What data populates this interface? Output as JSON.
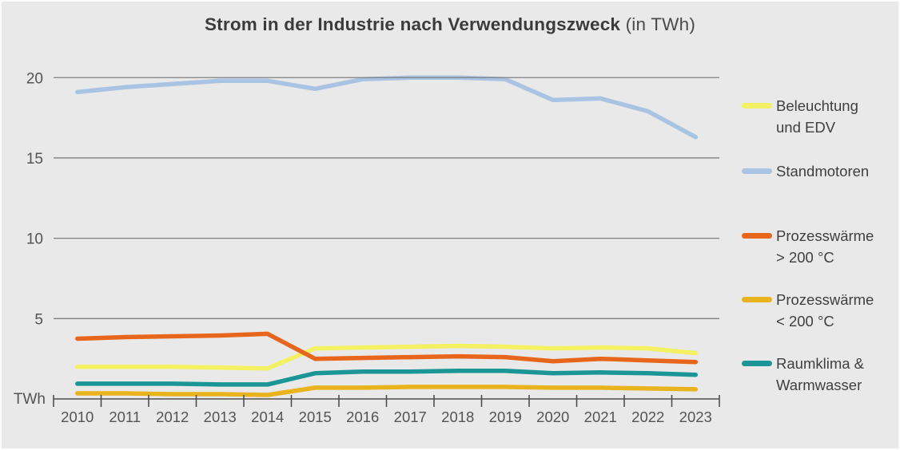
{
  "page": {
    "title_main": "Strom in der Industrie nach Verwendungszweck",
    "title_suffix": " (in TWh)"
  },
  "chart_data": {
    "type": "line",
    "title": "Strom in der Industrie nach Verwendungszweck (in TWh)",
    "xlabel": "",
    "ylabel": "TWh",
    "ylim": [
      0,
      21
    ],
    "yticks": [
      5,
      10,
      15,
      20
    ],
    "grid": true,
    "legend_position": "right",
    "background_color": "#e9e9e9",
    "gridline_color": "#7f7f7f",
    "axis_color": "#4f4f4f",
    "text_color": "#545454",
    "x": [
      2010,
      2011,
      2012,
      2013,
      2014,
      2015,
      2016,
      2017,
      2018,
      2019,
      2020,
      2021,
      2022,
      2023
    ],
    "series": [
      {
        "name": "Beleuchtung und EDV",
        "legend_lines": [
          "Beleuchtung",
          "und EDV"
        ],
        "color": "#f3f162",
        "values": [
          2.0,
          2.0,
          2.0,
          1.95,
          1.9,
          3.15,
          3.2,
          3.25,
          3.3,
          3.25,
          3.15,
          3.2,
          3.15,
          2.85
        ]
      },
      {
        "name": "Standmotoren",
        "legend_lines": [
          "Standmotoren"
        ],
        "color": "#a9c3e3",
        "values": [
          19.1,
          19.4,
          19.6,
          19.8,
          19.8,
          19.3,
          19.9,
          20.0,
          20.0,
          19.9,
          18.6,
          18.7,
          17.9,
          16.3
        ]
      },
      {
        "name": "Prozesswärme > 200 °C",
        "legend_lines": [
          "Prozesswärme",
          "> 200 °C"
        ],
        "color": "#e8661c",
        "values": [
          3.75,
          3.85,
          3.9,
          3.95,
          4.05,
          2.5,
          2.55,
          2.6,
          2.65,
          2.6,
          2.35,
          2.5,
          2.4,
          2.3
        ]
      },
      {
        "name": "Prozesswärme < 200 °C",
        "legend_lines": [
          "Prozesswärme",
          "< 200 °C"
        ],
        "color": "#e9b31e",
        "values": [
          0.35,
          0.35,
          0.3,
          0.3,
          0.25,
          0.7,
          0.7,
          0.75,
          0.75,
          0.75,
          0.7,
          0.7,
          0.65,
          0.6
        ]
      },
      {
        "name": "Raumklima & Warmwasser",
        "legend_lines": [
          "Raumklima &",
          "Warmwasser"
        ],
        "color": "#1b9595",
        "values": [
          0.95,
          0.95,
          0.95,
          0.9,
          0.9,
          1.6,
          1.7,
          1.7,
          1.75,
          1.75,
          1.6,
          1.65,
          1.6,
          1.5
        ]
      }
    ]
  }
}
